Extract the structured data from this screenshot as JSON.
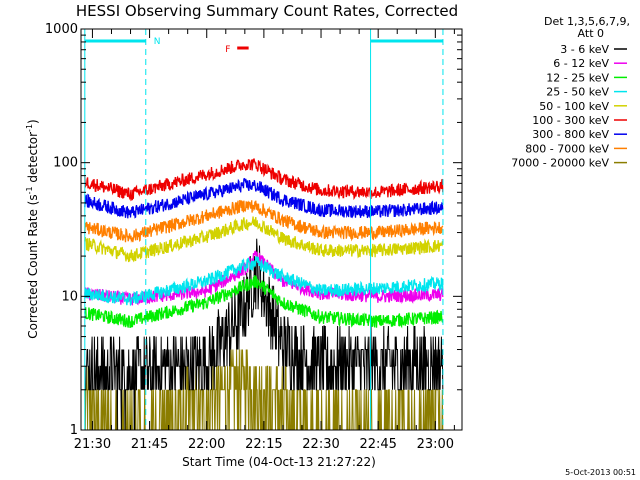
{
  "chart_data": {
    "type": "line",
    "title": "HESSI Observing Summary Count Rates, Corrected",
    "xlabel": "Start Time (04-Oct-13 21:27:22)",
    "ylabel": "Corrected Count Rate (s",
    "ylabel_sup1": "-1",
    "ylabel_mid": " detector",
    "ylabel_sup2": "-1",
    "ylabel_end": ")",
    "yscale": "log",
    "ylim": [
      1,
      1000
    ],
    "xlim": [
      "21:27",
      "23:07"
    ],
    "x_ticks": [
      "21:30",
      "21:45",
      "22:00",
      "22:15",
      "22:30",
      "22:45",
      "23:00"
    ],
    "y_ticks": [
      "1",
      "10",
      "100",
      "1000"
    ],
    "legend_header": "Det 1,3,5,6,7,9,",
    "legend_subheader": "Att 0",
    "legend_placement": "right",
    "timestamp": "5-Oct-2013 00:51",
    "markers": {
      "night_label": "N",
      "flare_label": "F",
      "night_color": "#00e5ee",
      "flare_color": "#ee0000",
      "vertical_lines": [
        "21:28",
        "21:44",
        "22:43",
        "23:02"
      ],
      "night_bars": [
        [
          "21:28",
          "21:44"
        ],
        [
          "22:43",
          "23:02"
        ]
      ],
      "flare_bar": [
        "22:08",
        "22:11"
      ]
    },
    "peak_time": "22:13",
    "series": [
      {
        "name": "3 - 6 keV",
        "color": "#000000",
        "x": [
          "21:28",
          "21:40",
          "22:00",
          "22:10",
          "22:13",
          "22:20",
          "22:30",
          "22:45",
          "23:02"
        ],
        "y": [
          2.8,
          2.6,
          3.2,
          8.0,
          16.0,
          4.2,
          3.1,
          3.0,
          3.2
        ]
      },
      {
        "name": "6 - 12 keV",
        "color": "#ee00ee",
        "x": [
          "21:28",
          "21:40",
          "22:00",
          "22:10",
          "22:13",
          "22:20",
          "22:30",
          "22:45",
          "23:02"
        ],
        "y": [
          10.5,
          9.5,
          11.0,
          16.0,
          20.0,
          13.0,
          10.5,
          10.0,
          10.3
        ]
      },
      {
        "name": "12 - 25 keV",
        "color": "#00ee00",
        "x": [
          "21:28",
          "21:40",
          "22:00",
          "22:10",
          "22:13",
          "22:20",
          "22:30",
          "22:45",
          "23:02"
        ],
        "y": [
          7.5,
          6.5,
          9.0,
          12.0,
          13.0,
          9.0,
          7.0,
          6.5,
          7.0
        ]
      },
      {
        "name": "25 - 50 keV",
        "color": "#00e5ee",
        "x": [
          "21:28",
          "21:40",
          "22:00",
          "22:10",
          "22:13",
          "22:20",
          "22:30",
          "22:45",
          "23:02"
        ],
        "y": [
          10.5,
          9.5,
          13.0,
          17.0,
          18.0,
          14.0,
          11.0,
          11.5,
          12.5
        ]
      },
      {
        "name": "50 - 100 keV",
        "color": "#d2d200",
        "x": [
          "21:28",
          "21:40",
          "22:00",
          "22:10",
          "22:13",
          "22:20",
          "22:30",
          "22:45",
          "23:02"
        ],
        "y": [
          25.0,
          20.0,
          28.0,
          35.0,
          36.0,
          27.0,
          22.0,
          22.0,
          24.0
        ]
      },
      {
        "name": "100 - 300 keV",
        "color": "#ee0000",
        "x": [
          "21:28",
          "21:40",
          "22:00",
          "22:10",
          "22:13",
          "22:20",
          "22:30",
          "22:45",
          "23:02"
        ],
        "y": [
          72.0,
          58.0,
          82.0,
          98.0,
          97.0,
          75.0,
          62.0,
          60.0,
          67.0
        ]
      },
      {
        "name": "300 - 800 keV",
        "color": "#0000ee",
        "x": [
          "21:28",
          "21:40",
          "22:00",
          "22:10",
          "22:13",
          "22:20",
          "22:30",
          "22:45",
          "23:02"
        ],
        "y": [
          52.0,
          42.0,
          58.0,
          68.0,
          67.0,
          53.0,
          44.0,
          43.0,
          46.0
        ]
      },
      {
        "name": "800 - 7000 keV",
        "color": "#ff7f00",
        "x": [
          "21:28",
          "21:40",
          "22:00",
          "22:10",
          "22:13",
          "22:20",
          "22:30",
          "22:45",
          "23:02"
        ],
        "y": [
          33.0,
          28.0,
          40.0,
          48.0,
          47.0,
          37.0,
          30.0,
          30.0,
          33.0
        ]
      },
      {
        "name": "7000 - 20000 keV",
        "color": "#8b7d00",
        "x": [
          "21:28",
          "21:40",
          "22:00",
          "22:10",
          "22:13",
          "22:20",
          "22:30",
          "22:45",
          "23:02"
        ],
        "y": [
          1.6,
          1.0,
          1.6,
          2.4,
          2.0,
          1.5,
          1.0,
          1.0,
          1.5
        ]
      }
    ]
  }
}
